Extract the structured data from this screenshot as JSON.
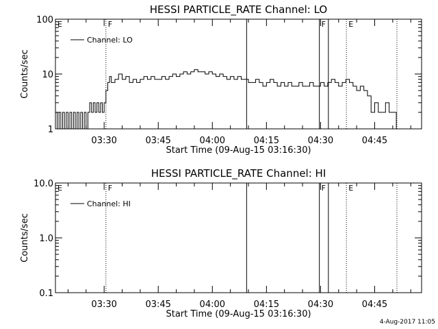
{
  "chart_data": [
    {
      "type": "line",
      "title": "HESSI PARTICLE_RATE Channel: LO",
      "ylabel": "Counts/sec",
      "xlabel": "Start Time (09-Aug-15 03:16:30)",
      "y_scale": "log",
      "ylim": [
        1,
        100
      ],
      "y_ticks": [
        1,
        10,
        100
      ],
      "y_tick_labels": [
        "1",
        "10",
        "100"
      ],
      "xlim": [
        "03:16:30",
        "04:58:00"
      ],
      "x_ticks": [
        "03:30",
        "03:45",
        "04:00",
        "04:15",
        "04:30",
        "04:45"
      ],
      "legend": {
        "placement": "top-left",
        "label": "Channel: LO"
      },
      "flags": [
        {
          "time": "03:16:30",
          "label": "E",
          "style": "none"
        },
        {
          "time": "03:30:30",
          "label": "F",
          "style": "dotted"
        },
        {
          "time": "04:09:30",
          "label": "",
          "style": "solid"
        },
        {
          "time": "04:29:40",
          "label": "F",
          "style": "solid"
        },
        {
          "time": "04:32:10",
          "label": "",
          "style": "solid"
        },
        {
          "time": "04:37:10",
          "label": "E",
          "style": "dotted"
        },
        {
          "time": "04:51:10",
          "label": "",
          "style": "dotted"
        }
      ],
      "series": [
        {
          "name": "Channel: LO",
          "x": [
            "03:16:30",
            "03:17:00",
            "03:17:30",
            "03:18:00",
            "03:18:30",
            "03:19:00",
            "03:19:30",
            "03:20:00",
            "03:20:30",
            "03:21:00",
            "03:21:30",
            "03:22:00",
            "03:22:30",
            "03:23:00",
            "03:23:30",
            "03:24:00",
            "03:24:30",
            "03:25:00",
            "03:25:30",
            "03:26:00",
            "03:26:30",
            "03:27:00",
            "03:27:30",
            "03:28:00",
            "03:28:30",
            "03:29:00",
            "03:29:30",
            "03:30:00",
            "03:30:30",
            "03:31:00",
            "03:31:30",
            "03:32:00",
            "03:33:00",
            "03:34:00",
            "03:35:00",
            "03:36:00",
            "03:37:00",
            "03:38:00",
            "03:39:00",
            "03:40:00",
            "03:41:00",
            "03:42:00",
            "03:43:00",
            "03:44:00",
            "03:45:00",
            "03:46:00",
            "03:47:00",
            "03:48:00",
            "03:49:00",
            "03:50:00",
            "03:51:00",
            "03:52:00",
            "03:53:00",
            "03:54:00",
            "03:55:00",
            "03:56:00",
            "03:57:00",
            "03:58:00",
            "03:59:00",
            "04:00:00",
            "04:01:00",
            "04:02:00",
            "04:03:00",
            "04:04:00",
            "04:05:00",
            "04:06:00",
            "04:07:00",
            "04:08:00",
            "04:09:00",
            "04:10:00",
            "04:11:00",
            "04:12:00",
            "04:13:00",
            "04:14:00",
            "04:15:00",
            "04:16:00",
            "04:17:00",
            "04:18:00",
            "04:19:00",
            "04:20:00",
            "04:21:00",
            "04:22:00",
            "04:23:00",
            "04:24:00",
            "04:25:00",
            "04:26:00",
            "04:27:00",
            "04:28:00",
            "04:29:00",
            "04:30:00",
            "04:31:00",
            "04:32:00",
            "04:33:00",
            "04:34:00",
            "04:35:00",
            "04:36:00",
            "04:37:00",
            "04:38:00",
            "04:39:00",
            "04:40:00",
            "04:41:00",
            "04:42:00",
            "04:43:00",
            "04:44:00",
            "04:45:00",
            "04:46:00",
            "04:47:00",
            "04:48:00",
            "04:49:00",
            "04:50:00",
            "04:51:00"
          ],
          "y": [
            2,
            1,
            2,
            1,
            2,
            1,
            2,
            1,
            2,
            1,
            2,
            1,
            2,
            1,
            2,
            1,
            2,
            1,
            2,
            3,
            2,
            3,
            2,
            3,
            2,
            3,
            2,
            3,
            5,
            7,
            9,
            7,
            8,
            10,
            8,
            9,
            7,
            8,
            7,
            8,
            9,
            8,
            9,
            8,
            8,
            9,
            8,
            9,
            10,
            9,
            10,
            11,
            10,
            11,
            12,
            11,
            11,
            10,
            11,
            10,
            9,
            10,
            9,
            8,
            9,
            8,
            9,
            8,
            8,
            7,
            7,
            8,
            7,
            6,
            7,
            8,
            7,
            6,
            7,
            6,
            7,
            6,
            6,
            7,
            6,
            6,
            7,
            6,
            6,
            7,
            6,
            7,
            8,
            7,
            6,
            7,
            8,
            7,
            6,
            5,
            6,
            5,
            4,
            2,
            3,
            2,
            2,
            3,
            2,
            2,
            1
          ]
        }
      ]
    },
    {
      "type": "line",
      "title": "HESSI PARTICLE_RATE Channel: HI",
      "ylabel": "Counts/sec",
      "xlabel": "Start Time (09-Aug-15 03:16:30)",
      "y_scale": "log",
      "ylim": [
        0.1,
        10
      ],
      "y_ticks": [
        0.1,
        1,
        10
      ],
      "y_tick_labels": [
        "0.1",
        "1.0",
        "10.0"
      ],
      "xlim": [
        "03:16:30",
        "04:58:00"
      ],
      "x_ticks": [
        "03:30",
        "03:45",
        "04:00",
        "04:15",
        "04:30",
        "04:45"
      ],
      "legend": {
        "placement": "top-left",
        "label": "Channel: HI"
      },
      "flags": [
        {
          "time": "03:16:30",
          "label": "E",
          "style": "none"
        },
        {
          "time": "03:30:30",
          "label": "F",
          "style": "dotted"
        },
        {
          "time": "04:09:30",
          "label": "",
          "style": "solid"
        },
        {
          "time": "04:29:40",
          "label": "F",
          "style": "solid"
        },
        {
          "time": "04:32:10",
          "label": "",
          "style": "solid"
        },
        {
          "time": "04:37:10",
          "label": "E",
          "style": "dotted"
        },
        {
          "time": "04:51:10",
          "label": "",
          "style": "dotted"
        }
      ],
      "series": [
        {
          "name": "Channel: HI",
          "x": [],
          "y": []
        }
      ]
    }
  ],
  "footer": {
    "date": "4-Aug-2017 11:05"
  }
}
